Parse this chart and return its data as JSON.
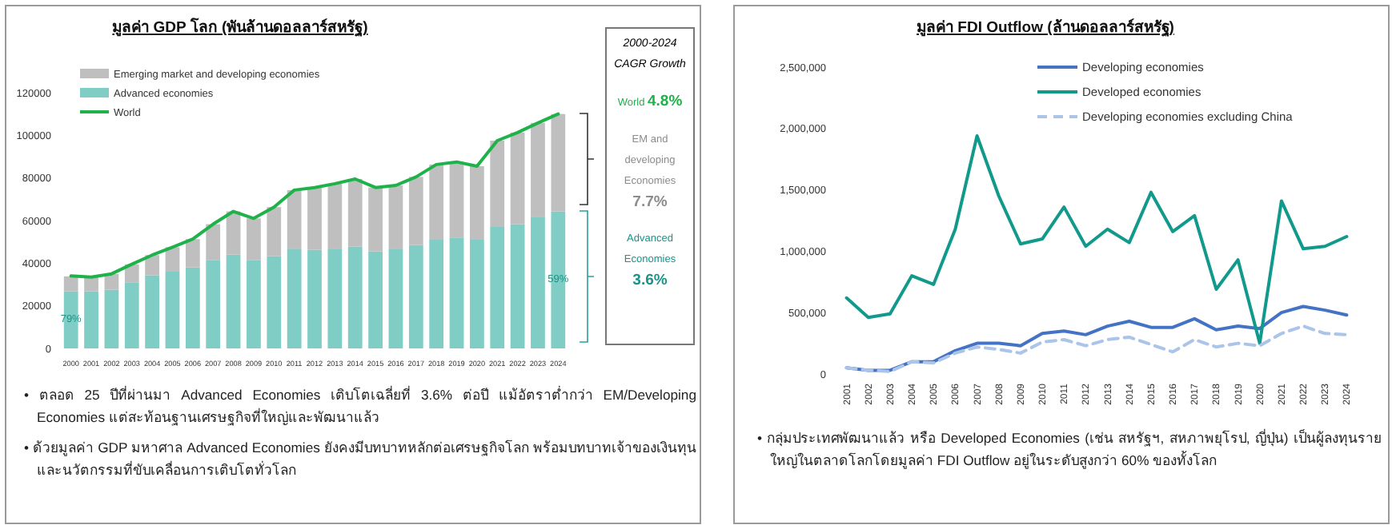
{
  "chart_data": [
    {
      "type": "bar",
      "stacked": true,
      "title": "มูลค่า GDP โลก (พันล้านดอลลาร์สหรัฐ)",
      "categories": [
        "2000",
        "2001",
        "2002",
        "2003",
        "2004",
        "2005",
        "2006",
        "2007",
        "2008",
        "2009",
        "2010",
        "2011",
        "2012",
        "2013",
        "2014",
        "2015",
        "2016",
        "2017",
        "2018",
        "2019",
        "2020",
        "2021",
        "2022",
        "2023",
        "2024"
      ],
      "series": [
        {
          "name": "Advanced economies",
          "color": "#7fcdc4",
          "values": [
            26800,
            26800,
            27500,
            30800,
            34300,
            36000,
            38000,
            41500,
            44000,
            41500,
            43300,
            46800,
            46300,
            46800,
            47800,
            45500,
            46800,
            48500,
            51300,
            51800,
            51000,
            57000,
            58300,
            61800,
            64300
          ]
        },
        {
          "name": "Emerging market and developing economies",
          "color": "#bfbfbf",
          "values": [
            7000,
            6700,
            7500,
            8700,
            9500,
            11500,
            13300,
            16800,
            20300,
            19500,
            23000,
            27500,
            29200,
            30500,
            31700,
            30000,
            29700,
            32000,
            35000,
            35700,
            34500,
            40500,
            43000,
            44000,
            45700
          ]
        },
        {
          "name": "World",
          "type": "line",
          "color": "#1fb14a",
          "values": [
            34000,
            33500,
            35000,
            39500,
            43800,
            47500,
            51300,
            58300,
            64300,
            61000,
            66300,
            74300,
            75500,
            77300,
            79500,
            75500,
            76500,
            80500,
            86300,
            87500,
            85500,
            97500,
            101300,
            105800,
            110000
          ]
        }
      ],
      "ylim": [
        0,
        120000
      ],
      "yticks": [
        0,
        20000,
        40000,
        60000,
        80000,
        100000,
        120000
      ],
      "legend": "top left",
      "annotations": [
        {
          "text": "79%",
          "x": "2000",
          "y": 14000
        },
        {
          "text": "59%",
          "x": "2024",
          "y": 32500
        },
        "• ตลอด 25 ปีที่ผ่านมา Advanced Economies เติบโตเฉลี่ยที่ 3.6% ต่อปี แม้อัตราต่ำกว่า EM/Developing Economies แต่สะท้อนฐานเศรษฐกิจที่ใหญ่และพัฒนาแล้ว",
        "• ด้วยมูลค่า GDP มหาศาล Advanced Economies ยังคงมีบทบาทหลักต่อเศรษฐกิจโลก พร้อมบทบาทเจ้าของเงินทุนและนวัตกรรมที่ขับเคลื่อนการเติบโตทั่วโลก"
      ]
    },
    {
      "type": "other",
      "title": "2000-2024 CAGR Growth",
      "annotations": [
        "World 4.8%",
        "EM and developing Economies 7.7%",
        "Advanced Economies 3.6%"
      ],
      "colors": [
        "#1fb14a",
        "#8c8c8c",
        "#1a9488"
      ]
    },
    {
      "type": "line",
      "title": "มูลค่า FDI Outflow (ล้านดอลลาร์สหรัฐ)",
      "categories": [
        "2001",
        "2002",
        "2003",
        "2004",
        "2005",
        "2006",
        "2007",
        "2008",
        "2009",
        "2010",
        "2011",
        "2012",
        "2013",
        "2014",
        "2015",
        "2016",
        "2017",
        "2018",
        "2019",
        "2020",
        "2021",
        "2022",
        "2023",
        "2024"
      ],
      "series": [
        {
          "name": "Developing economies",
          "color": "#4472c4",
          "values": [
            50000,
            30000,
            30000,
            100000,
            100000,
            190000,
            250000,
            250000,
            230000,
            330000,
            350000,
            320000,
            390000,
            430000,
            380000,
            380000,
            450000,
            360000,
            390000,
            370000,
            500000,
            550000,
            520000,
            480000
          ]
        },
        {
          "name": "Developed economies",
          "color": "#119a8c",
          "values": [
            620000,
            460000,
            490000,
            800000,
            730000,
            1180000,
            1940000,
            1450000,
            1060000,
            1100000,
            1360000,
            1040000,
            1180000,
            1070000,
            1480000,
            1160000,
            1290000,
            690000,
            930000,
            250000,
            1410000,
            1020000,
            1040000,
            1120000
          ]
        },
        {
          "name": "Developing economies excluding China",
          "color": "#aac4ea",
          "line_style": "dashed",
          "values": [
            50000,
            30000,
            20000,
            100000,
            90000,
            170000,
            220000,
            200000,
            170000,
            260000,
            280000,
            230000,
            280000,
            300000,
            240000,
            180000,
            280000,
            220000,
            250000,
            230000,
            330000,
            390000,
            330000,
            320000
          ]
        }
      ],
      "ylim": [
        0,
        2500000
      ],
      "yticks": [
        {
          "value": 0,
          "label": "0"
        },
        {
          "value": 500000,
          "label": "500,000"
        },
        {
          "value": 1000000,
          "label": "1,000,000"
        },
        {
          "value": 1500000,
          "label": "1,500,000"
        },
        {
          "value": 2000000,
          "label": "2,000,000"
        },
        {
          "value": 2500000,
          "label": "2,500,000"
        }
      ],
      "legend": "top right",
      "annotations": [
        "• กลุ่มประเทศพัฒนาแล้ว หรือ Developed Economies (เช่น สหรัฐฯ, สหภาพยุโรป, ญี่ปุ่น) เป็นผู้ลงทุนรายใหญ่ในตลาดโลกโดยมูลค่า FDI Outflow อยู่ในระดับสูงกว่า 60% ของทั้งโลก"
      ]
    }
  ]
}
